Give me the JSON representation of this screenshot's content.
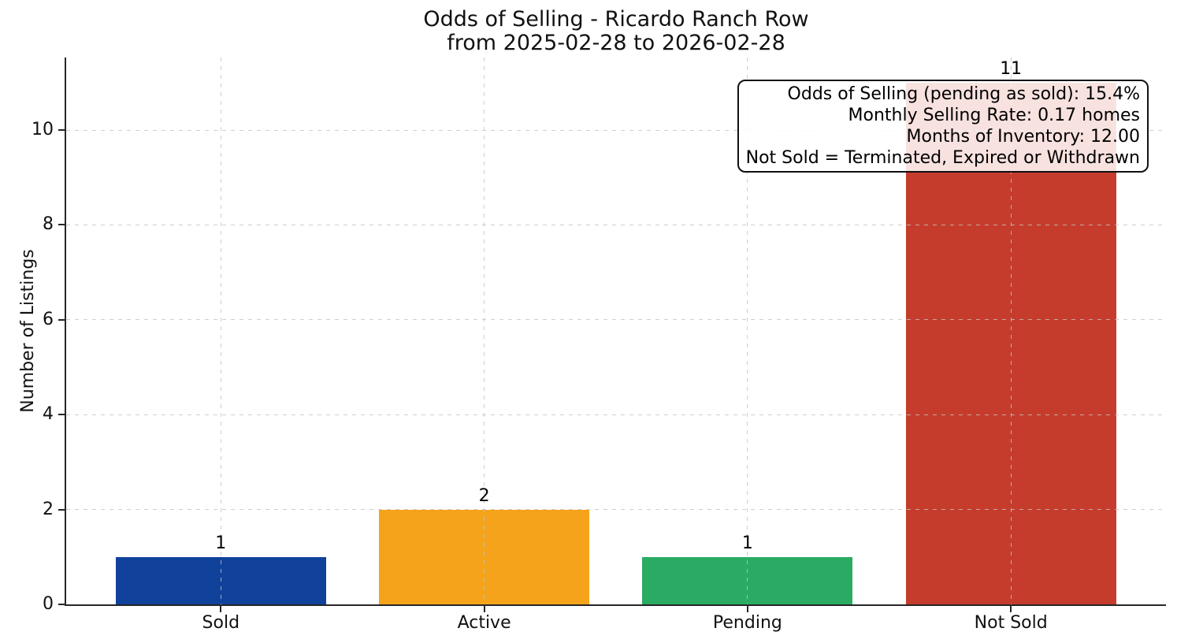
{
  "figure": {
    "title_lines": [
      "Odds of Selling - Ricardo Ranch Row",
      "from 2025-02-28 to 2026-02-28"
    ]
  },
  "chart_data": {
    "type": "bar",
    "title": "Odds of Selling - Ricardo Ranch Row from 2025-02-28 to 2026-02-28",
    "categories": [
      "Sold",
      "Active",
      "Pending",
      "Not Sold"
    ],
    "values": [
      1,
      2,
      1,
      11
    ],
    "value_labels": [
      "1",
      "2",
      "1",
      "11"
    ],
    "bar_colors": [
      "#11429b",
      "#f5a31a",
      "#2aab63",
      "#c53c2c"
    ],
    "xlabel": "",
    "ylabel": "Number of Listings",
    "ylim": [
      0,
      11.53
    ],
    "yticks": [
      0,
      2,
      4,
      6,
      8,
      10
    ],
    "grid": "dashed light-gray gridlines, horizontal at yticks and vertical at each category, drawn above bars",
    "legend": "none",
    "annotation_box": {
      "position": "top-right",
      "lines": [
        "Odds of Selling (pending as sold): 15.4%",
        "Monthly Selling Rate: 0.17 homes",
        "Months of Inventory: 12.00",
        "Not Sold = Terminated, Expired or Withdrawn"
      ]
    }
  }
}
